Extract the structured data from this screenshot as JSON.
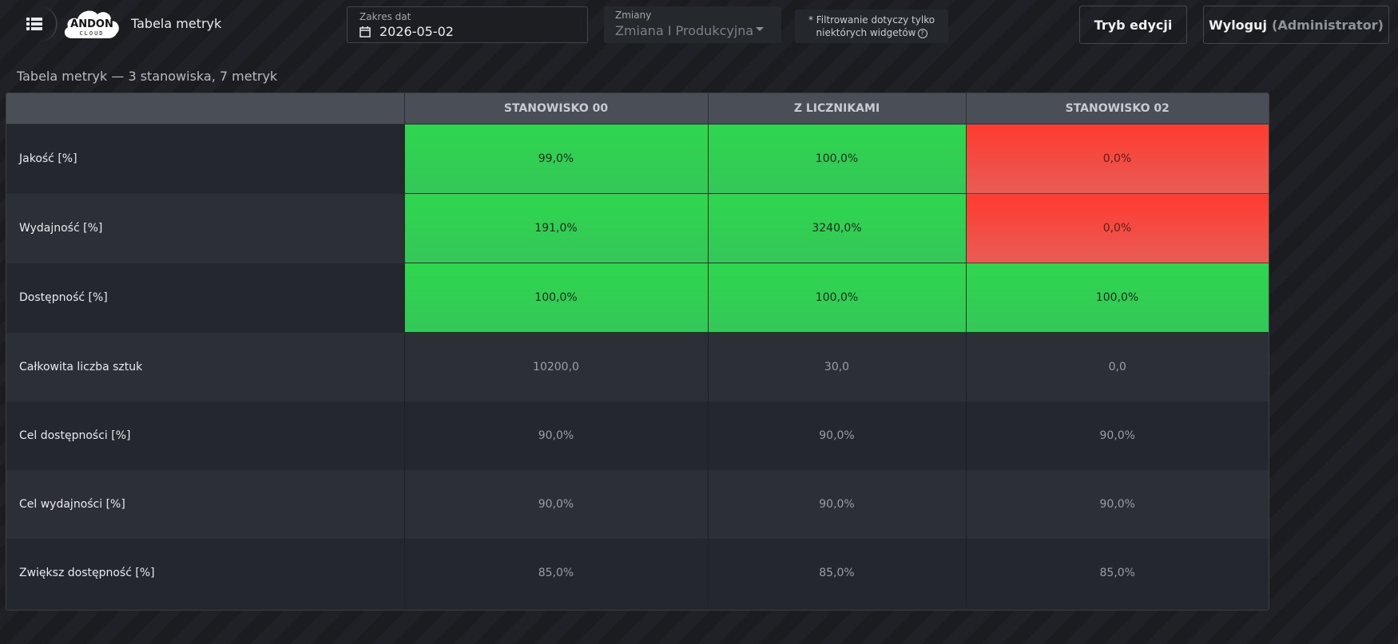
{
  "header": {
    "app_title": "Tabela metryk",
    "logo_text_top": "ANDON",
    "logo_text_bottom": "CLOUD",
    "date_filter": {
      "label": "Zakres dat",
      "value": "2026-05-02"
    },
    "shift_filter": {
      "label": "Zmiany",
      "value": "Zmiana I Produkcyjna"
    },
    "filter_note_line1": "* Filtrowanie dotyczy tylko",
    "filter_note_line2": "niektórych widgetów",
    "edit_button": "Tryb edycji",
    "logout_button": "Wyloguj",
    "logout_role": "(Administrator)"
  },
  "widget": {
    "title": "Tabela metryk — 3 stanowiska, 7 metryk",
    "columns": [
      "",
      "STANOWISKO 00",
      "Z LICZNIKAMI",
      "STANOWISKO 02"
    ],
    "rows": [
      {
        "metric": "Jakość [%]",
        "values": [
          "99,0%",
          "100,0%",
          "0,0%"
        ],
        "status": [
          "good",
          "good",
          "bad"
        ]
      },
      {
        "metric": "Wydajność [%]",
        "values": [
          "191,0%",
          "3240,0%",
          "0,0%"
        ],
        "status": [
          "good",
          "good",
          "bad"
        ]
      },
      {
        "metric": "Dostępność [%]",
        "values": [
          "100,0%",
          "100,0%",
          "100,0%"
        ],
        "status": [
          "good",
          "good",
          "good"
        ]
      },
      {
        "metric": "Całkowita liczba sztuk",
        "values": [
          "10200,0",
          "30,0",
          "0,0"
        ],
        "status": [
          "",
          "",
          ""
        ]
      },
      {
        "metric": "Cel dostępności [%]",
        "values": [
          "90,0%",
          "90,0%",
          "90,0%"
        ],
        "status": [
          "",
          "",
          ""
        ]
      },
      {
        "metric": "Cel wydajności [%]",
        "values": [
          "90,0%",
          "90,0%",
          "90,0%"
        ],
        "status": [
          "",
          "",
          ""
        ]
      },
      {
        "metric": "Zwiększ dostępność [%]",
        "values": [
          "85,0%",
          "85,0%",
          "85,0%"
        ],
        "status": [
          "",
          "",
          ""
        ]
      }
    ]
  },
  "colors": {
    "good": "#2fd64e",
    "bad": "#ff3b30",
    "header_bg": "#4a4e56"
  },
  "icons": {
    "menu": "list-menu-icon",
    "calendar": "calendar-icon",
    "caret": "caret-down-icon",
    "help": "help-circle-icon"
  }
}
